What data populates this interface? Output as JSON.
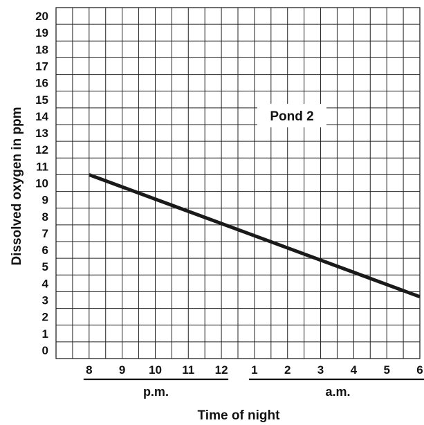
{
  "chart_data": {
    "type": "line",
    "annotation": "Pond 2",
    "ylabel": "Dissolved oxygen in ppm",
    "xlabel": "Time of night",
    "ylim": [
      0,
      20
    ],
    "grid": true,
    "yticks": [
      "0",
      "1",
      "2",
      "3",
      "4",
      "5",
      "6",
      "7",
      "8",
      "9",
      "10",
      "11",
      "12",
      "13",
      "14",
      "15",
      "16",
      "17",
      "18",
      "19",
      "20"
    ],
    "xticks": [
      "8",
      "9",
      "10",
      "11",
      "12",
      "1",
      "2",
      "3",
      "4",
      "5",
      "6"
    ],
    "x_groups": [
      {
        "label": "p.m.",
        "from_tick": 0,
        "to_tick": 4
      },
      {
        "label": "a.m.",
        "from_tick": 5,
        "to_tick": 10
      }
    ],
    "x": [
      "8 p.m.",
      "6 a.m."
    ],
    "values": [
      10.5,
      3.2
    ],
    "line_color": "#1a1a1a"
  }
}
